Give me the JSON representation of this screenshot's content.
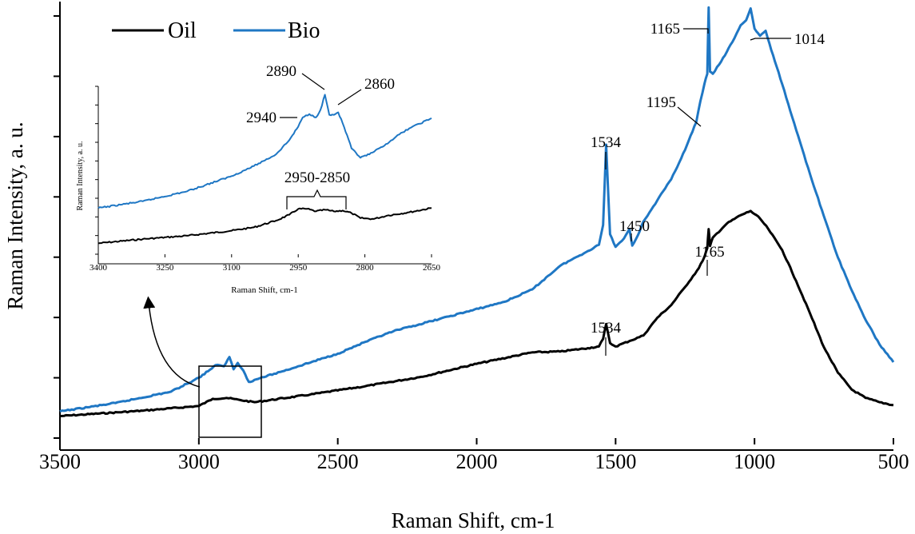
{
  "chart_data": [
    {
      "type": "line",
      "title": "",
      "xlabel": "Raman Shift, cm-1",
      "ylabel": "Raman Intensity, a. u.",
      "xlim": [
        3500,
        500
      ],
      "ylim": [
        0,
        100
      ],
      "x_ticks": [
        "3500",
        "3000",
        "2500",
        "2000",
        "1500",
        "1000",
        "500"
      ],
      "legend_position": "top-left",
      "series": [
        {
          "name": "Oil",
          "color": "#000000",
          "x": [
            3500,
            3200,
            3000,
            2950,
            2900,
            2850,
            2800,
            2600,
            2400,
            2200,
            2000,
            1800,
            1700,
            1600,
            1560,
            1545,
            1534,
            1520,
            1500,
            1450,
            1400,
            1350,
            1300,
            1250,
            1200,
            1180,
            1170,
            1165,
            1160,
            1150,
            1100,
            1050,
            1014,
            980,
            950,
            900,
            850,
            800,
            750,
            700,
            650,
            600,
            550,
            500
          ],
          "y": [
            5.2,
            6.5,
            7.6,
            9.3,
            9.5,
            9.0,
            8.5,
            10.3,
            12.3,
            14.5,
            17.6,
            20.3,
            20.5,
            21.3,
            21.7,
            23.5,
            27.0,
            22.5,
            21.7,
            23.0,
            24.3,
            28.5,
            31.5,
            35.8,
            40.3,
            43.0,
            45.0,
            49.5,
            45.5,
            47.5,
            50.8,
            52.8,
            53.8,
            52.0,
            49.5,
            44.5,
            37.2,
            29.5,
            21.5,
            15.5,
            11.5,
            9.5,
            8.5,
            7.8
          ]
        },
        {
          "name": "Bio",
          "color": "#1f77c4",
          "x": [
            3500,
            3300,
            3100,
            3000,
            2960,
            2940,
            2910,
            2890,
            2875,
            2860,
            2840,
            2820,
            2780,
            2700,
            2500,
            2400,
            2300,
            2100,
            1900,
            1800,
            1700,
            1600,
            1560,
            1545,
            1534,
            1520,
            1500,
            1470,
            1450,
            1440,
            1420,
            1400,
            1350,
            1300,
            1250,
            1210,
            1195,
            1180,
            1170,
            1165,
            1160,
            1150,
            1120,
            1080,
            1050,
            1030,
            1014,
            1000,
            980,
            960,
            940,
            900,
            850,
            800,
            750,
            700,
            650,
            600,
            550,
            500
          ],
          "y": [
            6.3,
            8.3,
            11.0,
            14.3,
            16.2,
            17.3,
            17.0,
            19.2,
            16.3,
            17.8,
            16.0,
            13.3,
            14.2,
            15.8,
            20.0,
            22.8,
            25.3,
            28.8,
            32.3,
            35.2,
            40.8,
            44.3,
            45.8,
            50.5,
            69.5,
            48.3,
            45.3,
            47.3,
            49.5,
            45.6,
            48.0,
            51.3,
            56.3,
            61.3,
            68.3,
            74.8,
            79.8,
            84.0,
            86.3,
            102.0,
            86.8,
            86.3,
            89.2,
            93.8,
            97.8,
            99.0,
            101.8,
            97.0,
            95.3,
            96.5,
            92.0,
            83.8,
            73.0,
            62.5,
            52.5,
            42.8,
            35.0,
            28.0,
            22.2,
            18.0
          ]
        }
      ],
      "annotations": [
        {
          "text": "1165",
          "series": "Bio",
          "x": 1165
        },
        {
          "text": "1014",
          "series": "Bio",
          "x": 1014
        },
        {
          "text": "1195",
          "series": "Bio",
          "x": 1195
        },
        {
          "text": "1534",
          "series": "Bio",
          "x": 1534
        },
        {
          "text": "1450",
          "series": "Bio",
          "x": 1450
        },
        {
          "text": "1165",
          "series": "Oil",
          "x": 1165
        },
        {
          "text": "1534",
          "series": "Oil",
          "x": 1534
        }
      ]
    },
    {
      "type": "line",
      "title": "",
      "xlabel": "Raman Shift, cm-1",
      "ylabel": "Raman Intensity, a. u.",
      "xlim": [
        3400,
        2650
      ],
      "ylim": [
        0,
        100
      ],
      "x_ticks": [
        "3400",
        "3250",
        "3100",
        "2950",
        "2800",
        "2650"
      ],
      "series": [
        {
          "name": "Oil",
          "color": "#000000",
          "x": [
            3400,
            3300,
            3200,
            3100,
            3050,
            3000,
            2970,
            2950,
            2930,
            2910,
            2890,
            2870,
            2850,
            2830,
            2810,
            2780,
            2750,
            2700,
            2650
          ],
          "y": [
            6.5,
            9.0,
            11.0,
            14.0,
            16.0,
            20.0,
            23.5,
            27.0,
            27.0,
            25.5,
            26.5,
            25.5,
            26.0,
            24.5,
            21.5,
            21.0,
            23.0,
            25.0,
            27.5
          ],
          "label_range": "2950-2850"
        },
        {
          "name": "Bio",
          "color": "#1f77c4",
          "x": [
            3400,
            3300,
            3200,
            3100,
            3050,
            3000,
            2970,
            2950,
            2940,
            2925,
            2910,
            2900,
            2890,
            2880,
            2870,
            2860,
            2850,
            2830,
            2810,
            2790,
            2760,
            2730,
            2700,
            2650
          ],
          "y": [
            27.5,
            31.5,
            37.5,
            46.5,
            52.5,
            59.5,
            68.0,
            76.0,
            81.5,
            83.5,
            81.5,
            86.0,
            95.0,
            83.0,
            83.0,
            84.5,
            78.0,
            63.0,
            57.5,
            59.5,
            64.0,
            70.0,
            75.0,
            81.0
          ]
        }
      ],
      "annotations": [
        {
          "text": "2890",
          "series": "Bio",
          "x": 2890
        },
        {
          "text": "2860",
          "series": "Bio",
          "x": 2860
        },
        {
          "text": "2940",
          "series": "Bio",
          "x": 2940
        },
        {
          "text": "2950-2850",
          "series": "Oil",
          "x_range": [
            2950,
            2850
          ]
        }
      ]
    }
  ]
}
